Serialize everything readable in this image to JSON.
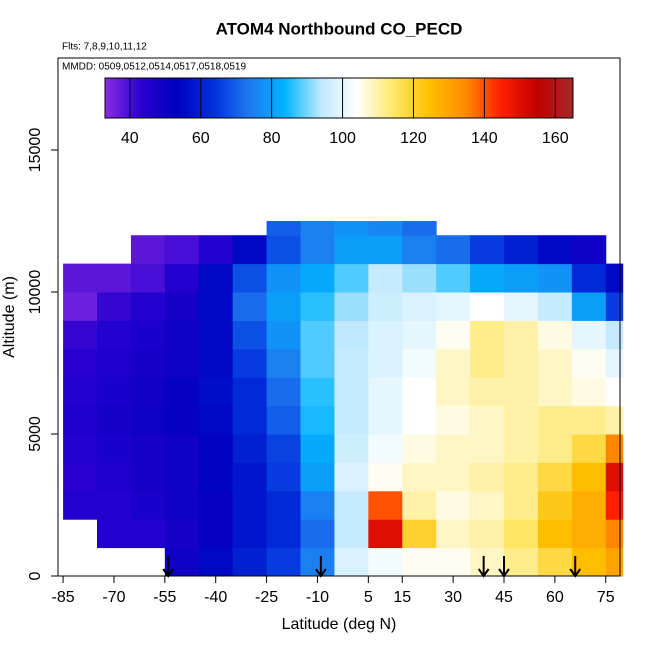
{
  "chart_data": {
    "type": "heatmap",
    "title": "ATOM4 Northbound CO_PECD",
    "subtitle": "Flts: 7,8,9,10,11,12",
    "annotation": "MMDD: 0509,0512,0514,0517,0518,0519",
    "x_label": "Latitude (deg N)",
    "y_label": "Altitude (m)",
    "xlim": [
      -86.5,
      79.2
    ],
    "ylim": [
      0,
      18240
    ],
    "xticks": [
      -85,
      -70,
      -55,
      -40,
      -25,
      -10,
      5,
      15,
      30,
      45,
      60,
      75
    ],
    "yticks": [
      0,
      5000,
      10000,
      15000
    ],
    "lat_edges": [
      -85,
      -75,
      -65,
      -55,
      -45,
      -35,
      -25,
      -15,
      -5,
      5,
      15,
      25,
      35,
      45,
      55,
      65,
      75,
      80
    ],
    "alt_edges": [
      0,
      1000,
      2000,
      3000,
      4000,
      5000,
      6000,
      7000,
      8000,
      9000,
      10000,
      11000,
      12000,
      12500
    ],
    "z": [
      [
        null,
        null,
        null,
        50,
        55,
        60,
        65,
        75,
        98,
        102,
        105,
        105,
        108,
        112,
        118,
        125,
        130
      ],
      [
        null,
        45,
        45,
        48,
        52,
        58,
        62,
        72,
        95,
        150,
        120,
        108,
        110,
        115,
        125,
        128,
        135
      ],
      [
        45,
        45,
        47,
        50,
        52,
        58,
        62,
        75,
        95,
        140,
        110,
        106,
        108,
        112,
        122,
        128,
        145
      ],
      [
        44,
        46,
        48,
        50,
        54,
        58,
        65,
        80,
        98,
        105,
        108,
        108,
        110,
        112,
        118,
        125,
        150
      ],
      [
        45,
        47,
        48,
        50,
        54,
        60,
        66,
        82,
        96,
        102,
        106,
        108,
        108,
        110,
        112,
        118,
        135
      ],
      [
        46,
        48,
        50,
        52,
        55,
        62,
        70,
        85,
        95,
        100,
        104,
        106,
        108,
        110,
        112,
        112,
        110
      ],
      [
        45,
        47,
        49,
        52,
        56,
        62,
        72,
        86,
        95,
        100,
        104,
        108,
        110,
        110,
        108,
        106,
        104
      ],
      [
        44,
        46,
        48,
        50,
        55,
        65,
        75,
        88,
        95,
        98,
        102,
        108,
        112,
        110,
        108,
        105,
        100
      ],
      [
        42,
        45,
        47,
        50,
        55,
        68,
        78,
        88,
        94,
        98,
        100,
        105,
        112,
        110,
        106,
        100,
        95
      ],
      [
        36,
        42,
        45,
        48,
        55,
        72,
        80,
        86,
        92,
        96,
        98,
        100,
        104,
        100,
        95,
        80,
        65
      ],
      [
        38,
        38,
        40,
        45,
        55,
        68,
        78,
        82,
        88,
        95,
        92,
        88,
        82,
        80,
        78,
        62,
        55
      ],
      [
        null,
        null,
        38,
        40,
        45,
        55,
        68,
        75,
        80,
        80,
        75,
        72,
        65,
        60,
        55,
        50,
        null
      ],
      [
        null,
        null,
        null,
        null,
        null,
        null,
        70,
        75,
        78,
        76,
        72,
        null,
        null,
        null,
        null,
        null,
        null
      ]
    ],
    "zlim": [
      33,
      165
    ],
    "zticks": [
      40,
      60,
      80,
      100,
      120,
      140,
      160
    ],
    "colors": [
      "#8a2be2",
      "#2a00d0",
      "#0000c0",
      "#0030dc",
      "#1e78f0",
      "#00b4ff",
      "#bfe9ff",
      "#ffffff",
      "#ffe86a",
      "#ffc000",
      "#ff8c00",
      "#ff2000",
      "#c00000",
      "#a52a2a"
    ],
    "arrows_lat": [
      -54,
      -9,
      39,
      45,
      66
    ]
  }
}
